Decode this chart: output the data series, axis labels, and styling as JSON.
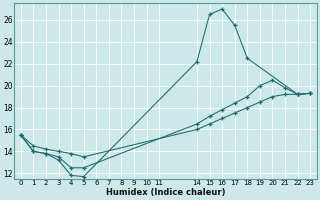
{
  "xlabel": "Humidex (Indice chaleur)",
  "bg_color": "#cce8e8",
  "grid_color": "#ffffff",
  "line_color": "#1a6b6b",
  "xlim": [
    -0.5,
    23.5
  ],
  "ylim": [
    11.5,
    27.5
  ],
  "yticks": [
    12,
    14,
    16,
    18,
    20,
    22,
    24,
    26
  ],
  "xtick_vals": [
    0,
    1,
    2,
    3,
    4,
    5,
    6,
    7,
    8,
    9,
    10,
    11,
    14,
    15,
    16,
    17,
    18,
    19,
    20,
    21,
    22,
    23
  ],
  "line1_x": [
    0,
    1,
    2,
    3,
    4,
    5,
    14,
    15,
    16,
    17,
    18,
    22,
    23
  ],
  "line1_y": [
    15.5,
    14.0,
    13.8,
    13.2,
    11.8,
    11.7,
    22.2,
    26.5,
    27.0,
    25.5,
    22.5,
    19.2,
    19.3
  ],
  "line2_x": [
    0,
    1,
    2,
    3,
    4,
    5,
    14,
    15,
    16,
    17,
    18,
    19,
    20,
    21,
    22,
    23
  ],
  "line2_y": [
    15.5,
    14.0,
    13.8,
    13.5,
    12.5,
    12.5,
    16.5,
    17.2,
    17.8,
    18.4,
    19.0,
    20.0,
    20.5,
    19.8,
    19.2,
    19.3
  ],
  "line3_x": [
    0,
    1,
    2,
    3,
    4,
    5,
    14,
    15,
    16,
    17,
    18,
    19,
    20,
    21,
    22,
    23
  ],
  "line3_y": [
    15.5,
    14.5,
    14.2,
    14.0,
    13.8,
    13.5,
    16.0,
    16.5,
    17.0,
    17.5,
    18.0,
    18.5,
    19.0,
    19.2,
    19.2,
    19.3
  ]
}
